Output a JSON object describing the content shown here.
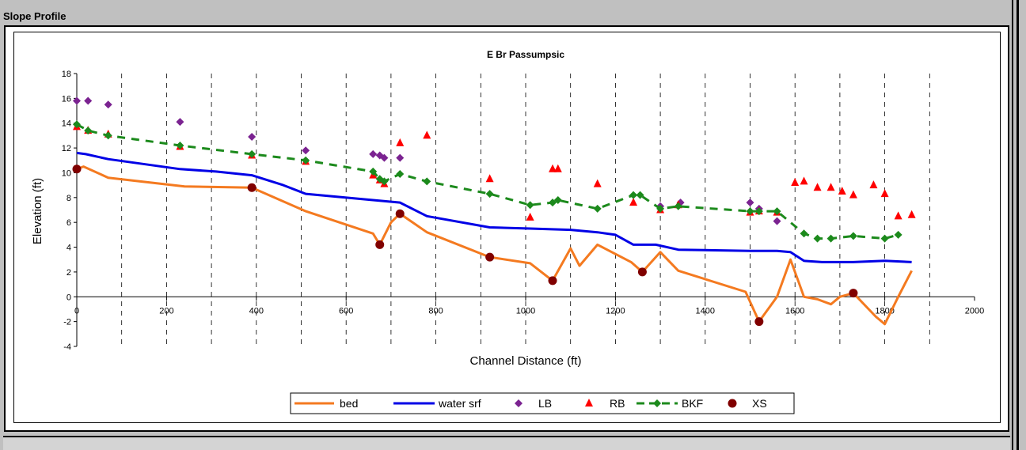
{
  "panel": {
    "title": "Slope Profile"
  },
  "colors": {
    "bed": "#f47a20",
    "water_srf": "#0000e6",
    "lb": "#7b2391",
    "rb": "#ff0000",
    "bkf": "#1c8a1c",
    "xs": "#800000"
  },
  "chart_data": {
    "type": "line",
    "title": "E Br Passumpsic",
    "xlabel": "Channel Distance (ft)",
    "ylabel": "Elevation (ft)",
    "xlim": [
      0,
      2000
    ],
    "ylim": [
      -4,
      18
    ],
    "xticks": [
      0,
      200,
      400,
      600,
      800,
      1000,
      1200,
      1400,
      1600,
      1800,
      2000
    ],
    "yticks": [
      -4,
      -2,
      0,
      2,
      4,
      6,
      8,
      10,
      12,
      14,
      16,
      18
    ],
    "grid": "dashed vertical gridlines",
    "legend_position": "bottom",
    "series": [
      {
        "name": "bed",
        "style": "line",
        "points": [
          [
            0,
            10.3
          ],
          [
            15,
            10.5
          ],
          [
            70,
            9.6
          ],
          [
            240,
            8.9
          ],
          [
            390,
            8.8
          ],
          [
            510,
            6.9
          ],
          [
            660,
            5.1
          ],
          [
            675,
            4.2
          ],
          [
            700,
            6.0
          ],
          [
            720,
            6.7
          ],
          [
            780,
            5.2
          ],
          [
            920,
            3.2
          ],
          [
            1010,
            2.7
          ],
          [
            1060,
            1.3
          ],
          [
            1100,
            3.9
          ],
          [
            1120,
            2.5
          ],
          [
            1160,
            4.2
          ],
          [
            1235,
            2.8
          ],
          [
            1260,
            2.0
          ],
          [
            1300,
            3.6
          ],
          [
            1340,
            2.1
          ],
          [
            1490,
            0.4
          ],
          [
            1520,
            -2.0
          ],
          [
            1560,
            0.0
          ],
          [
            1590,
            3.0
          ],
          [
            1610,
            1.0
          ],
          [
            1620,
            0.0
          ],
          [
            1650,
            -0.2
          ],
          [
            1680,
            -0.6
          ],
          [
            1700,
            0.0
          ],
          [
            1730,
            0.3
          ],
          [
            1780,
            -1.6
          ],
          [
            1800,
            -2.2
          ],
          [
            1830,
            0.0
          ],
          [
            1860,
            2.1
          ]
        ]
      },
      {
        "name": "water srf",
        "style": "line",
        "points": [
          [
            0,
            11.6
          ],
          [
            20,
            11.5
          ],
          [
            70,
            11.1
          ],
          [
            230,
            10.3
          ],
          [
            310,
            10.1
          ],
          [
            390,
            9.8
          ],
          [
            460,
            9.0
          ],
          [
            510,
            8.3
          ],
          [
            660,
            7.8
          ],
          [
            720,
            7.6
          ],
          [
            780,
            6.5
          ],
          [
            920,
            5.6
          ],
          [
            1010,
            5.5
          ],
          [
            1100,
            5.4
          ],
          [
            1160,
            5.2
          ],
          [
            1200,
            5.0
          ],
          [
            1240,
            4.2
          ],
          [
            1290,
            4.2
          ],
          [
            1340,
            3.8
          ],
          [
            1500,
            3.7
          ],
          [
            1560,
            3.7
          ],
          [
            1590,
            3.6
          ],
          [
            1620,
            2.9
          ],
          [
            1660,
            2.8
          ],
          [
            1730,
            2.8
          ],
          [
            1800,
            2.9
          ],
          [
            1860,
            2.8
          ]
        ]
      },
      {
        "name": "LB",
        "style": "marker",
        "marker": "diamond",
        "points": [
          [
            0,
            15.8
          ],
          [
            25,
            15.8
          ],
          [
            70,
            15.5
          ],
          [
            230,
            14.1
          ],
          [
            390,
            12.9
          ],
          [
            510,
            11.8
          ],
          [
            660,
            11.5
          ],
          [
            675,
            11.4
          ],
          [
            685,
            11.2
          ],
          [
            720,
            11.2
          ],
          [
            1300,
            7.3
          ],
          [
            1345,
            7.6
          ],
          [
            1500,
            7.6
          ],
          [
            1520,
            7.1
          ],
          [
            1560,
            6.1
          ]
        ]
      },
      {
        "name": "RB",
        "style": "marker",
        "marker": "triangle",
        "points": [
          [
            0,
            13.7
          ],
          [
            25,
            13.4
          ],
          [
            70,
            13.1
          ],
          [
            230,
            12.1
          ],
          [
            390,
            11.4
          ],
          [
            510,
            10.9
          ],
          [
            660,
            9.8
          ],
          [
            675,
            9.4
          ],
          [
            685,
            9.1
          ],
          [
            720,
            12.4
          ],
          [
            780,
            13.0
          ],
          [
            920,
            9.5
          ],
          [
            1010,
            6.4
          ],
          [
            1060,
            10.3
          ],
          [
            1072,
            10.3
          ],
          [
            1160,
            9.1
          ],
          [
            1240,
            7.6
          ],
          [
            1300,
            7.0
          ],
          [
            1340,
            7.4
          ],
          [
            1500,
            6.8
          ],
          [
            1520,
            6.9
          ],
          [
            1560,
            6.8
          ],
          [
            1600,
            9.2
          ],
          [
            1620,
            9.3
          ],
          [
            1650,
            8.8
          ],
          [
            1680,
            8.8
          ],
          [
            1705,
            8.5
          ],
          [
            1730,
            8.2
          ],
          [
            1775,
            9.0
          ],
          [
            1800,
            8.3
          ],
          [
            1830,
            6.5
          ],
          [
            1860,
            6.6
          ]
        ]
      },
      {
        "name": "BKF",
        "style": "dashed-marker",
        "marker": "diamond",
        "points": [
          [
            0,
            13.9
          ],
          [
            25,
            13.4
          ],
          [
            70,
            13.0
          ],
          [
            230,
            12.2
          ],
          [
            390,
            11.5
          ],
          [
            510,
            11.0
          ],
          [
            660,
            10.1
          ],
          [
            675,
            9.5
          ],
          [
            685,
            9.3
          ],
          [
            720,
            9.9
          ],
          [
            780,
            9.3
          ],
          [
            920,
            8.3
          ],
          [
            1010,
            7.4
          ],
          [
            1060,
            7.6
          ],
          [
            1072,
            7.8
          ],
          [
            1160,
            7.1
          ],
          [
            1240,
            8.2
          ],
          [
            1255,
            8.2
          ],
          [
            1300,
            7.1
          ],
          [
            1340,
            7.3
          ],
          [
            1500,
            6.9
          ],
          [
            1520,
            6.9
          ],
          [
            1560,
            6.9
          ],
          [
            1620,
            5.1
          ],
          [
            1650,
            4.7
          ],
          [
            1680,
            4.7
          ],
          [
            1730,
            4.9
          ],
          [
            1800,
            4.7
          ],
          [
            1830,
            5.0
          ]
        ]
      },
      {
        "name": "XS",
        "style": "marker",
        "marker": "circle",
        "points": [
          [
            0,
            10.3
          ],
          [
            390,
            8.8
          ],
          [
            675,
            4.2
          ],
          [
            720,
            6.7
          ],
          [
            920,
            3.2
          ],
          [
            1060,
            1.3
          ],
          [
            1260,
            2.0
          ],
          [
            1520,
            -2.0
          ],
          [
            1730,
            0.3
          ]
        ]
      }
    ]
  }
}
